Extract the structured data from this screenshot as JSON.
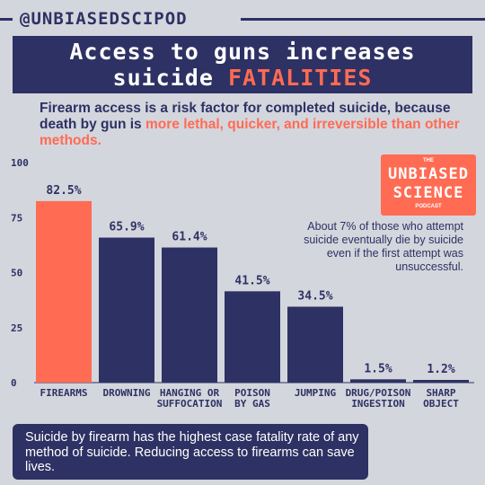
{
  "handle": "@UNBIASEDSCIPOD",
  "title": {
    "line1": "Access to guns increases",
    "line2_plain": "suicide ",
    "line2_accent": "FATALITIES"
  },
  "subtitle": {
    "plain": "Firearm access is a risk factor for completed suicide, because death by gun is ",
    "accent": "more lethal, quicker, and irreversible than other methods."
  },
  "logo": {
    "the": "THE",
    "word1": "UNBIASED",
    "word2": "SCIENCE",
    "podcast": "PODCAST"
  },
  "annotation": "About 7% of those who attempt suicide eventually die by suicide even if the first attempt was unsuccessful.",
  "footer": "Suicide by firearm has the highest case fatality rate of any method of suicide. Reducing access to firearms can save lives.",
  "colors": {
    "navy": "#2e3163",
    "accent": "#ff6b53",
    "background": "#d4d6dd"
  },
  "chart_data": {
    "type": "bar",
    "categories": [
      [
        "FIREARMS"
      ],
      [
        "DROWNING"
      ],
      [
        "HANGING OR",
        "SUFFOCATION"
      ],
      [
        "POISON",
        "BY GAS"
      ],
      [
        "JUMPING"
      ],
      [
        "DRUG/POISON",
        "INGESTION"
      ],
      [
        "SHARP",
        "OBJECT"
      ]
    ],
    "values": [
      82.5,
      65.9,
      61.4,
      41.5,
      34.5,
      1.5,
      1.2
    ],
    "value_labels": [
      "82.5%",
      "65.9%",
      "61.4%",
      "41.5%",
      "34.5%",
      "1.5%",
      "1.2%"
    ],
    "highlight_index": 0,
    "ylim": [
      0,
      100
    ],
    "yticks": [
      0,
      25,
      50,
      75,
      100
    ],
    "grid": false
  }
}
